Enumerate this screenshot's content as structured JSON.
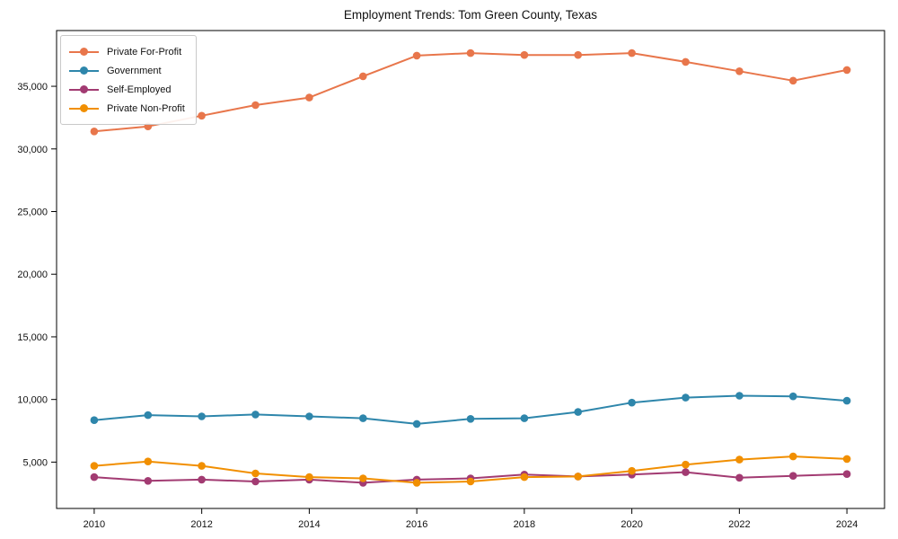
{
  "chart_data": {
    "type": "line",
    "title": "Employment Trends: Tom Green County, Texas",
    "xlabel": "",
    "ylabel": "",
    "grid": false,
    "legend_position": "upper-left",
    "x": [
      2010,
      2011,
      2012,
      2013,
      2014,
      2015,
      2016,
      2017,
      2018,
      2019,
      2020,
      2021,
      2022,
      2023,
      2024
    ],
    "xticks": [
      2010,
      2012,
      2014,
      2016,
      2018,
      2020,
      2022,
      2024
    ],
    "yticks": [
      5000,
      10000,
      15000,
      20000,
      25000,
      30000,
      35000
    ],
    "xlim": [
      2009.3,
      2024.7
    ],
    "ylim": [
      1300,
      39450
    ],
    "series": [
      {
        "name": "Private For-Profit",
        "color": "#E8764B",
        "values": [
          31400,
          31800,
          32650,
          33500,
          34100,
          35800,
          37450,
          37650,
          37500,
          37500,
          37650,
          36950,
          36200,
          35450,
          36300
        ]
      },
      {
        "name": "Government",
        "color": "#2E86AB",
        "values": [
          8350,
          8750,
          8650,
          8800,
          8650,
          8500,
          8050,
          8450,
          8500,
          9000,
          9750,
          10150,
          10300,
          10250,
          9900
        ]
      },
      {
        "name": "Self-Employed",
        "color": "#A23B72",
        "values": [
          3800,
          3500,
          3600,
          3450,
          3600,
          3350,
          3600,
          3700,
          4000,
          3850,
          4000,
          4200,
          3750,
          3900,
          4050
        ]
      },
      {
        "name": "Private Non-Profit",
        "color": "#F18F01",
        "values": [
          4700,
          5050,
          4700,
          4100,
          3800,
          3700,
          3350,
          3450,
          3800,
          3850,
          4300,
          4800,
          5200,
          5450,
          5250
        ]
      }
    ]
  }
}
